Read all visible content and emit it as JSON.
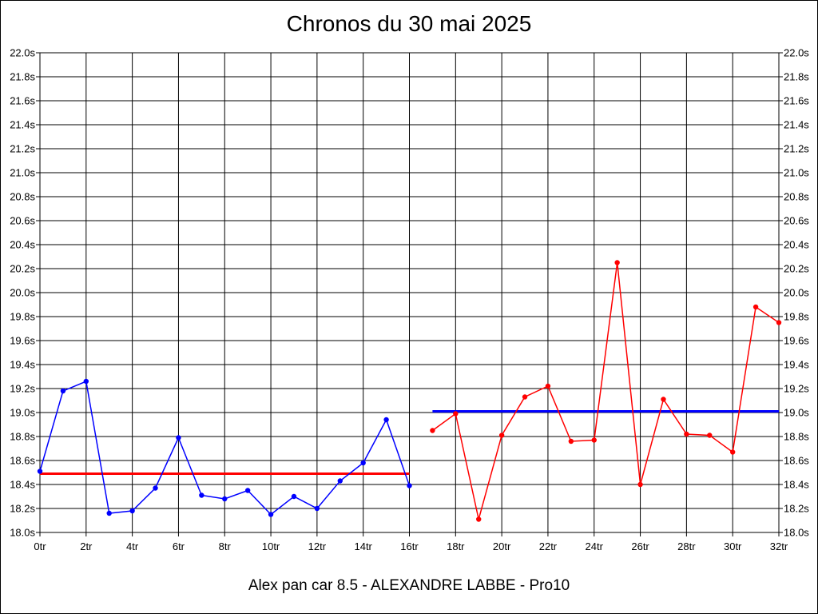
{
  "chart_data": {
    "type": "line",
    "title": "Chronos du 30 mai 2025",
    "caption": "Alex pan car 8.5 - ALEXANDRE LABBE - Pro10",
    "xlabel": "",
    "ylabel": "",
    "xlim": [
      0,
      32
    ],
    "ylim": [
      18.0,
      22.0
    ],
    "x_ticks": [
      "0tr",
      "2tr",
      "4tr",
      "6tr",
      "8tr",
      "10tr",
      "12tr",
      "14tr",
      "16tr",
      "18tr",
      "20tr",
      "22tr",
      "24tr",
      "26tr",
      "28tr",
      "30tr",
      "32tr"
    ],
    "y_ticks": [
      "18.0s",
      "18.2s",
      "18.4s",
      "18.6s",
      "18.8s",
      "19.0s",
      "19.2s",
      "19.4s",
      "19.6s",
      "19.8s",
      "20.0s",
      "20.2s",
      "20.4s",
      "20.6s",
      "20.8s",
      "21.0s",
      "21.2s",
      "21.4s",
      "21.6s",
      "21.8s",
      "22.0s"
    ],
    "grid": true,
    "series": [
      {
        "color": "#0000ff",
        "x": [
          0,
          1,
          2,
          3,
          4,
          5,
          6,
          7,
          8,
          9,
          10,
          11,
          12,
          13,
          14,
          15,
          16
        ],
        "y": [
          18.51,
          19.18,
          19.26,
          18.16,
          18.18,
          18.37,
          18.79,
          18.31,
          18.28,
          18.35,
          18.15,
          18.3,
          18.2,
          18.43,
          18.58,
          18.94,
          18.39
        ]
      },
      {
        "color": "#ff0000",
        "x": [
          17,
          18,
          19,
          20,
          21,
          22,
          23,
          24,
          25,
          26,
          27,
          28,
          29,
          30,
          31,
          32
        ],
        "y": [
          18.85,
          18.99,
          18.11,
          18.81,
          19.13,
          19.22,
          18.76,
          18.77,
          20.25,
          18.4,
          19.11,
          18.82,
          18.81,
          18.67,
          19.88,
          19.75
        ]
      }
    ],
    "reference_lines": [
      {
        "color": "#ff0000",
        "y": 18.49,
        "x_range": [
          0,
          16
        ]
      },
      {
        "color": "#0000ff",
        "y": 19.01,
        "x_range": [
          17,
          32
        ]
      }
    ]
  }
}
